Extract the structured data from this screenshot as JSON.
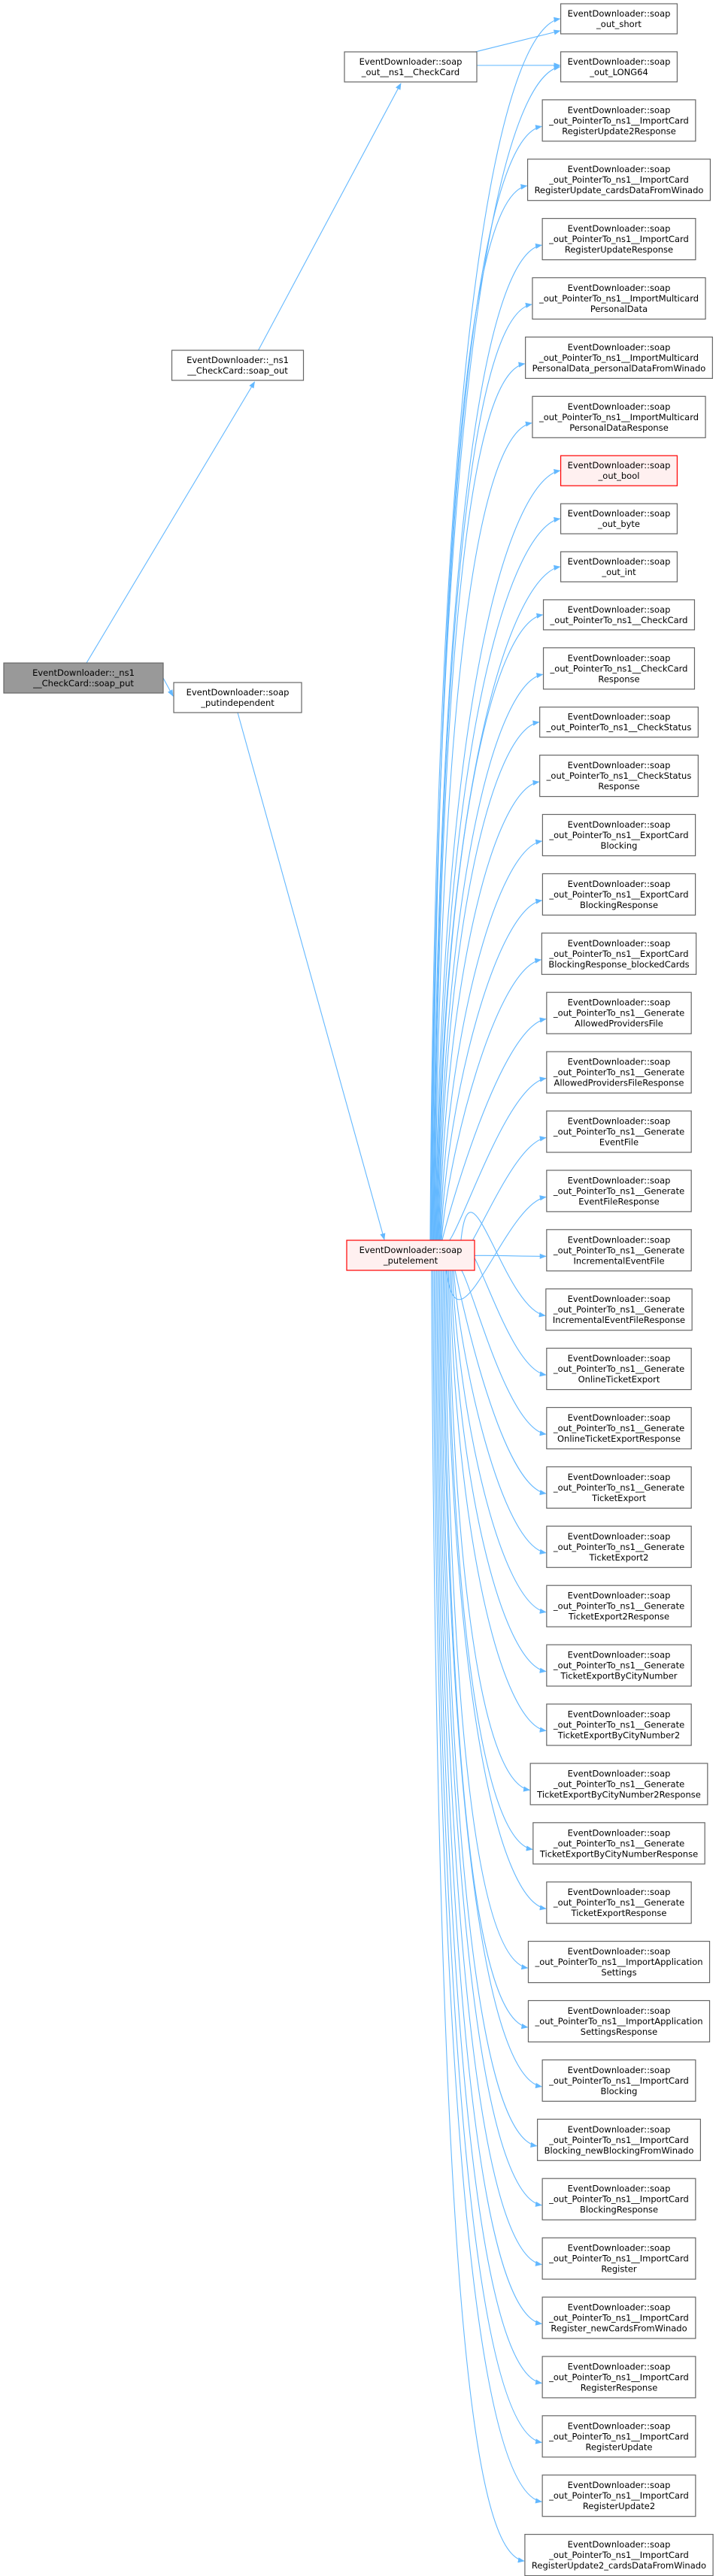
{
  "colors": {
    "edge": "#63b8ff",
    "node_border": "#666666",
    "node_fill": "#ffffff",
    "root_fill": "#999999",
    "root_border": "#666666",
    "highlight_fill": "#fff0f0",
    "highlight_border": "#ff0000"
  },
  "left_nodes": {
    "root": [
      "EventDownloader::_ns1",
      "__CheckCard::soap_put"
    ],
    "checkcard_soap_out": [
      "EventDownloader::_ns1",
      "__CheckCard::soap_out"
    ],
    "putindependent": [
      "EventDownloader::soap",
      "_putindependent"
    ],
    "out_ns1_checkcard": [
      "EventDownloader::soap",
      "_out__ns1__CheckCard"
    ],
    "putelement": [
      "EventDownloader::soap",
      "_putelement"
    ]
  },
  "right_nodes": [
    {
      "lines": [
        "EventDownloader::soap",
        "_out_short"
      ]
    },
    {
      "lines": [
        "EventDownloader::soap",
        "_out_LONG64"
      ]
    },
    {
      "lines": [
        "EventDownloader::soap",
        "_out_PointerTo_ns1__ImportCard",
        "RegisterUpdate2Response"
      ]
    },
    {
      "lines": [
        "EventDownloader::soap",
        "_out_PointerTo_ns1__ImportCard",
        "RegisterUpdate_cardsDataFromWinado"
      ]
    },
    {
      "lines": [
        "EventDownloader::soap",
        "_out_PointerTo_ns1__ImportCard",
        "RegisterUpdateResponse"
      ]
    },
    {
      "lines": [
        "EventDownloader::soap",
        "_out_PointerTo_ns1__ImportMulticard",
        "PersonalData"
      ]
    },
    {
      "lines": [
        "EventDownloader::soap",
        "_out_PointerTo_ns1__ImportMulticard",
        "PersonalData_personalDataFromWinado"
      ]
    },
    {
      "lines": [
        "EventDownloader::soap",
        "_out_PointerTo_ns1__ImportMulticard",
        "PersonalDataResponse"
      ]
    },
    {
      "lines": [
        "EventDownloader::soap",
        "_out_bool"
      ],
      "highlight": true
    },
    {
      "lines": [
        "EventDownloader::soap",
        "_out_byte"
      ]
    },
    {
      "lines": [
        "EventDownloader::soap",
        "_out_int"
      ]
    },
    {
      "lines": [
        "EventDownloader::soap",
        "_out_PointerTo_ns1__CheckCard"
      ]
    },
    {
      "lines": [
        "EventDownloader::soap",
        "_out_PointerTo_ns1__CheckCard",
        "Response"
      ]
    },
    {
      "lines": [
        "EventDownloader::soap",
        "_out_PointerTo_ns1__CheckStatus"
      ]
    },
    {
      "lines": [
        "EventDownloader::soap",
        "_out_PointerTo_ns1__CheckStatus",
        "Response"
      ]
    },
    {
      "lines": [
        "EventDownloader::soap",
        "_out_PointerTo_ns1__ExportCard",
        "Blocking"
      ]
    },
    {
      "lines": [
        "EventDownloader::soap",
        "_out_PointerTo_ns1__ExportCard",
        "BlockingResponse"
      ]
    },
    {
      "lines": [
        "EventDownloader::soap",
        "_out_PointerTo_ns1__ExportCard",
        "BlockingResponse_blockedCards"
      ]
    },
    {
      "lines": [
        "EventDownloader::soap",
        "_out_PointerTo_ns1__Generate",
        "AllowedProvidersFile"
      ]
    },
    {
      "lines": [
        "EventDownloader::soap",
        "_out_PointerTo_ns1__Generate",
        "AllowedProvidersFileResponse"
      ]
    },
    {
      "lines": [
        "EventDownloader::soap",
        "_out_PointerTo_ns1__Generate",
        "EventFile"
      ]
    },
    {
      "lines": [
        "EventDownloader::soap",
        "_out_PointerTo_ns1__Generate",
        "EventFileResponse"
      ]
    },
    {
      "lines": [
        "EventDownloader::soap",
        "_out_PointerTo_ns1__Generate",
        "IncrementalEventFile"
      ]
    },
    {
      "lines": [
        "EventDownloader::soap",
        "_out_PointerTo_ns1__Generate",
        "IncrementalEventFileResponse"
      ]
    },
    {
      "lines": [
        "EventDownloader::soap",
        "_out_PointerTo_ns1__Generate",
        "OnlineTicketExport"
      ]
    },
    {
      "lines": [
        "EventDownloader::soap",
        "_out_PointerTo_ns1__Generate",
        "OnlineTicketExportResponse"
      ]
    },
    {
      "lines": [
        "EventDownloader::soap",
        "_out_PointerTo_ns1__Generate",
        "TicketExport"
      ]
    },
    {
      "lines": [
        "EventDownloader::soap",
        "_out_PointerTo_ns1__Generate",
        "TicketExport2"
      ]
    },
    {
      "lines": [
        "EventDownloader::soap",
        "_out_PointerTo_ns1__Generate",
        "TicketExport2Response"
      ]
    },
    {
      "lines": [
        "EventDownloader::soap",
        "_out_PointerTo_ns1__Generate",
        "TicketExportByCityNumber"
      ]
    },
    {
      "lines": [
        "EventDownloader::soap",
        "_out_PointerTo_ns1__Generate",
        "TicketExportByCityNumber2"
      ]
    },
    {
      "lines": [
        "EventDownloader::soap",
        "_out_PointerTo_ns1__Generate",
        "TicketExportByCityNumber2Response"
      ]
    },
    {
      "lines": [
        "EventDownloader::soap",
        "_out_PointerTo_ns1__Generate",
        "TicketExportByCityNumberResponse"
      ]
    },
    {
      "lines": [
        "EventDownloader::soap",
        "_out_PointerTo_ns1__Generate",
        "TicketExportResponse"
      ]
    },
    {
      "lines": [
        "EventDownloader::soap",
        "_out_PointerTo_ns1__ImportApplication",
        "Settings"
      ]
    },
    {
      "lines": [
        "EventDownloader::soap",
        "_out_PointerTo_ns1__ImportApplication",
        "SettingsResponse"
      ]
    },
    {
      "lines": [
        "EventDownloader::soap",
        "_out_PointerTo_ns1__ImportCard",
        "Blocking"
      ]
    },
    {
      "lines": [
        "EventDownloader::soap",
        "_out_PointerTo_ns1__ImportCard",
        "Blocking_newBlockingFromWinado"
      ]
    },
    {
      "lines": [
        "EventDownloader::soap",
        "_out_PointerTo_ns1__ImportCard",
        "BlockingResponse"
      ]
    },
    {
      "lines": [
        "EventDownloader::soap",
        "_out_PointerTo_ns1__ImportCard",
        "Register"
      ]
    },
    {
      "lines": [
        "EventDownloader::soap",
        "_out_PointerTo_ns1__ImportCard",
        "Register_newCardsFromWinado"
      ]
    },
    {
      "lines": [
        "EventDownloader::soap",
        "_out_PointerTo_ns1__ImportCard",
        "RegisterResponse"
      ]
    },
    {
      "lines": [
        "EventDownloader::soap",
        "_out_PointerTo_ns1__ImportCard",
        "RegisterUpdate"
      ]
    },
    {
      "lines": [
        "EventDownloader::soap",
        "_out_PointerTo_ns1__ImportCard",
        "RegisterUpdate2"
      ]
    },
    {
      "lines": [
        "EventDownloader::soap",
        "_out_PointerTo_ns1__ImportCard",
        "RegisterUpdate2_cardsDataFromWinado"
      ]
    }
  ]
}
